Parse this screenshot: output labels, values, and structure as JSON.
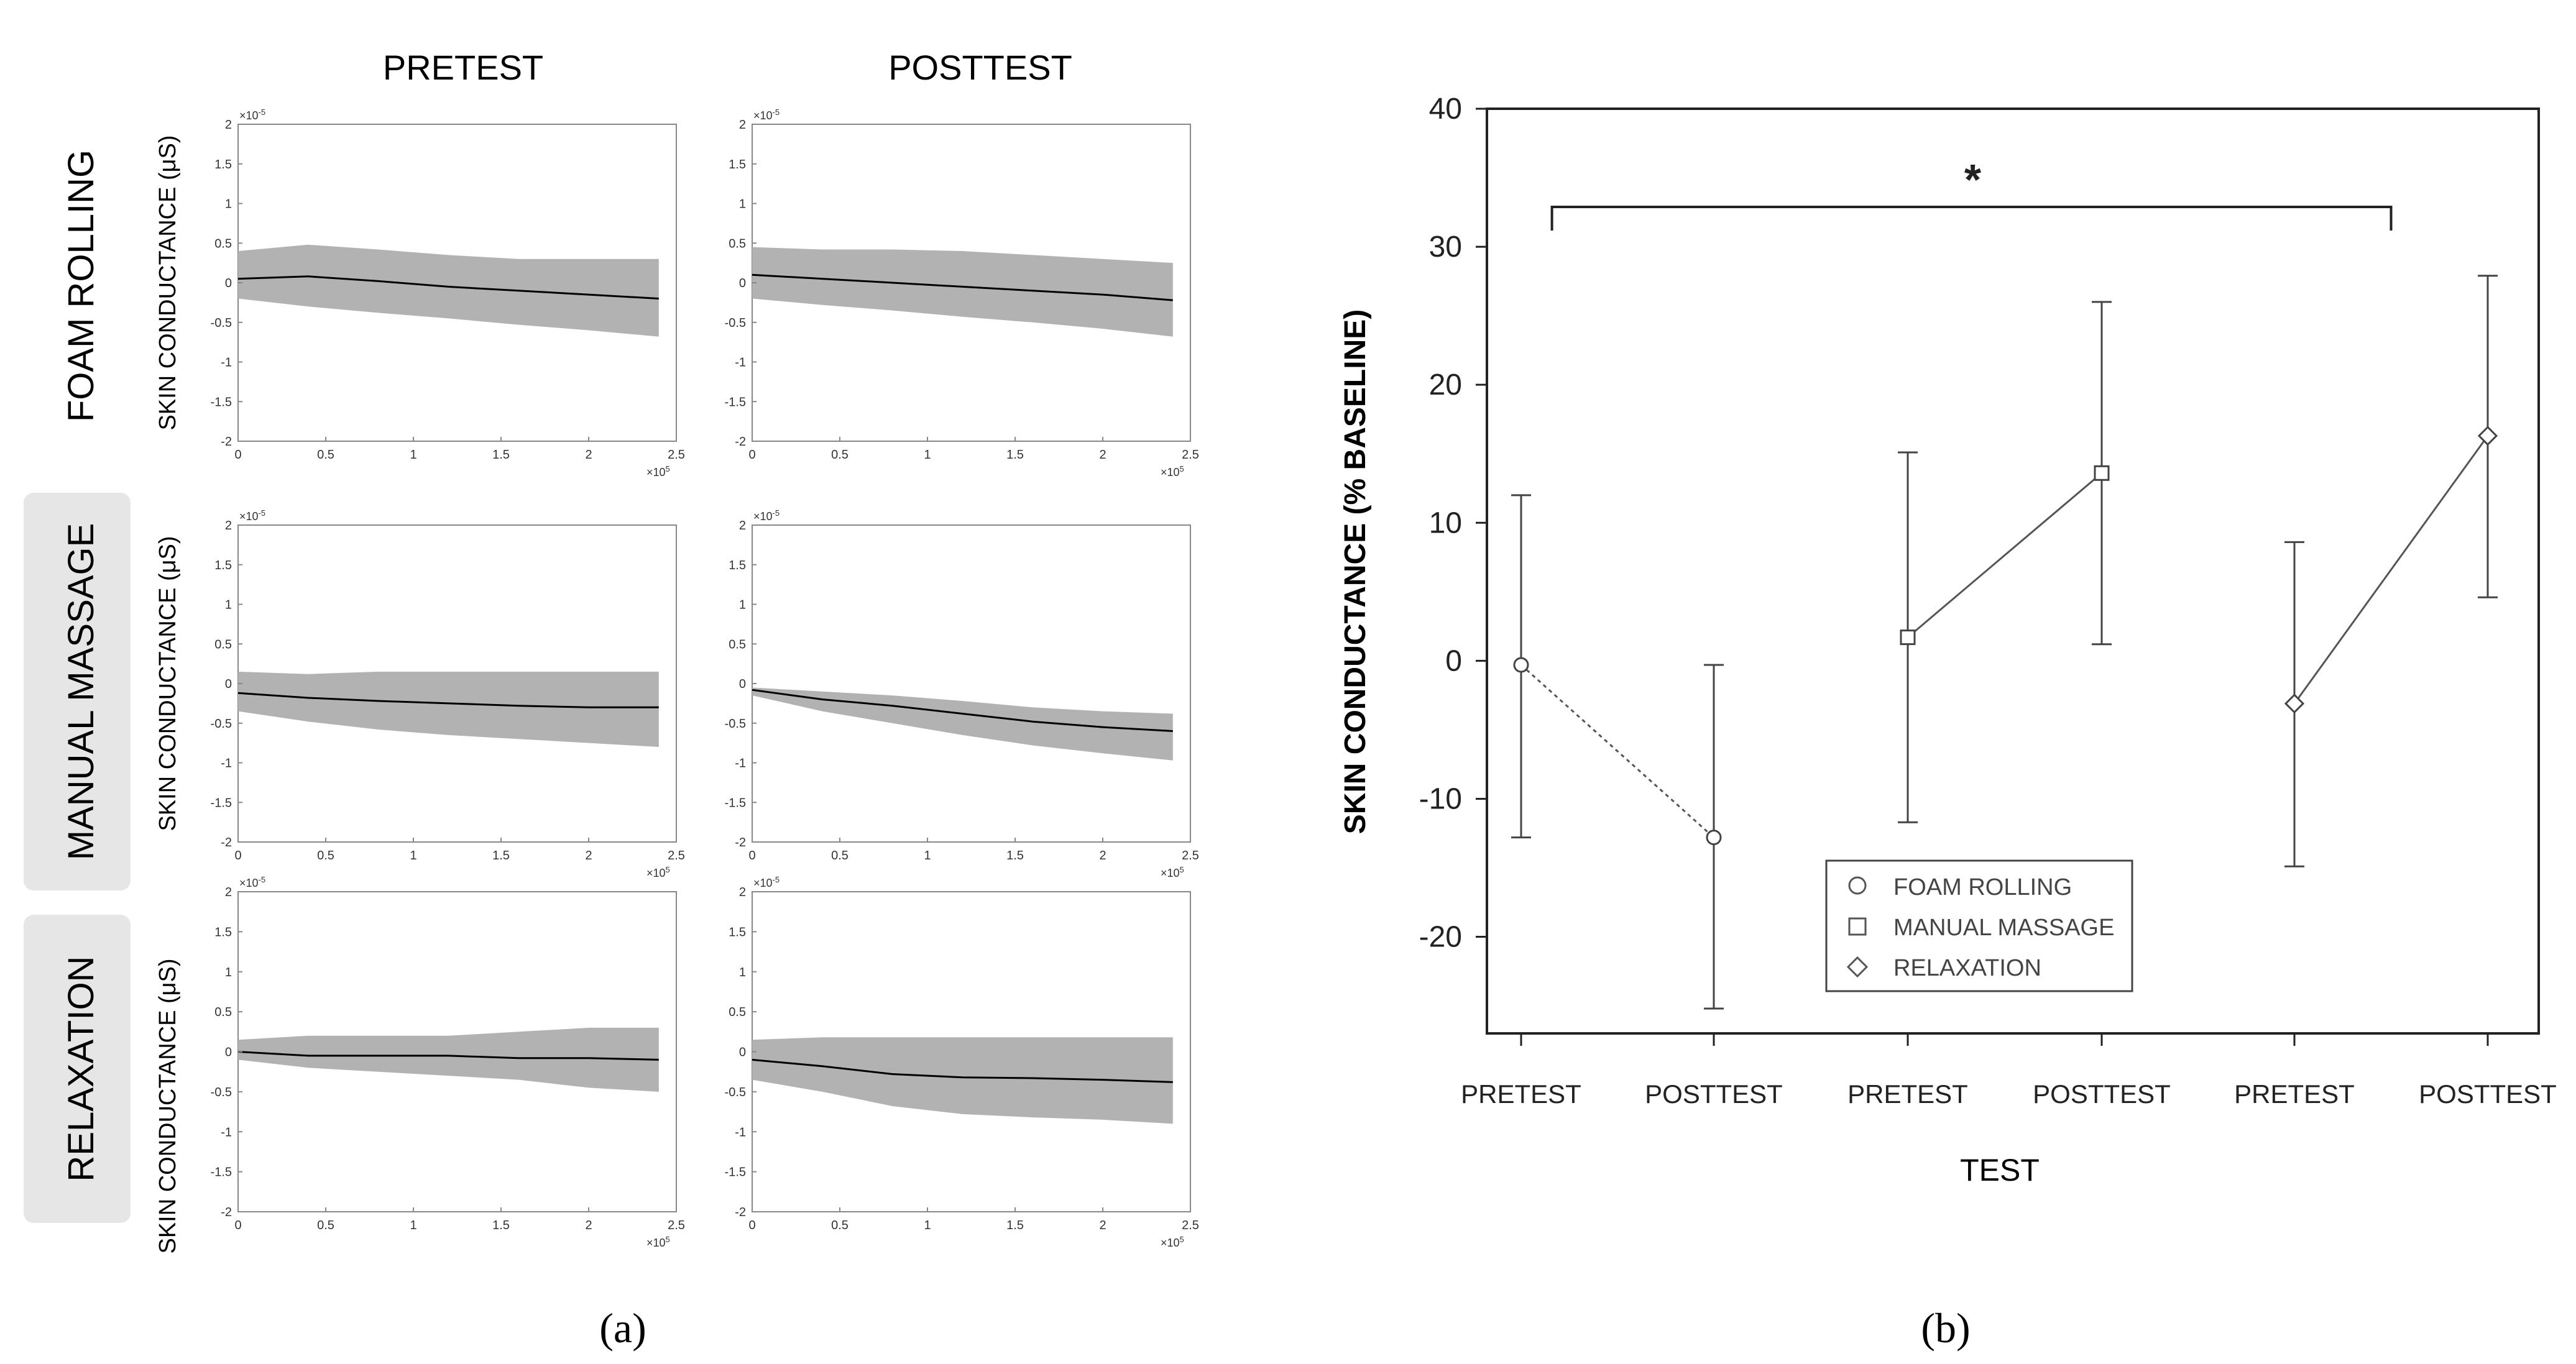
{
  "panel_a": {
    "label": "(a)",
    "column_headers": [
      "PRETEST",
      "POSTTEST"
    ],
    "row_labels": [
      "FOAM ROLLING",
      "MANUAL MASSAGE",
      "RELAXATION"
    ],
    "y_axis_label": "SKIN CONDUCTANCE (μS)",
    "x_ticks": [
      "0",
      "0.5",
      "1",
      "1.5",
      "2",
      "2.5"
    ],
    "y_ticks": [
      "2",
      "1.5",
      "1",
      "0.5",
      "0",
      "-0.5",
      "-1",
      "-1.5",
      "-2"
    ],
    "x_exponent": "×10",
    "x_exponent_power": "5",
    "y_exponent": "×10",
    "y_exponent_power": "-5",
    "colors": {
      "band": "#b2b2b2",
      "line": "#000000",
      "row_label_bg": "#e6e6e6"
    }
  },
  "panel_b": {
    "label": "(b)",
    "significance_marker": "*",
    "colors": {
      "axis": "#222222",
      "marker_fill": "#ffffff"
    }
  },
  "chart_data": [
    {
      "type": "area",
      "panel": "a",
      "grid": {
        "rows": [
          "FOAM ROLLING",
          "MANUAL MASSAGE",
          "RELAXATION"
        ],
        "columns": [
          "PRETEST",
          "POSTTEST"
        ]
      },
      "xlim": [
        0,
        2.5
      ],
      "ylim": [
        -2,
        2
      ],
      "x_unit_multiplier": "1e5",
      "y_unit_multiplier": "1e-5",
      "ylabel": "SKIN CONDUCTANCE (μS)",
      "x_at": [
        0,
        0.4,
        0.8,
        1.2,
        1.6,
        2.0,
        2.4
      ],
      "subplots": [
        {
          "row": "FOAM ROLLING",
          "column": "PRETEST",
          "mean": [
            0.05,
            0.08,
            0.02,
            -0.05,
            -0.1,
            -0.15,
            -0.2
          ],
          "upper": [
            0.4,
            0.48,
            0.42,
            0.35,
            0.3,
            0.3,
            0.3
          ],
          "lower": [
            -0.2,
            -0.3,
            -0.38,
            -0.45,
            -0.53,
            -0.6,
            -0.68
          ]
        },
        {
          "row": "FOAM ROLLING",
          "column": "POSTTEST",
          "mean": [
            0.1,
            0.05,
            0.0,
            -0.05,
            -0.1,
            -0.15,
            -0.22
          ],
          "upper": [
            0.45,
            0.42,
            0.42,
            0.4,
            0.35,
            0.3,
            0.25
          ],
          "lower": [
            -0.2,
            -0.28,
            -0.35,
            -0.43,
            -0.5,
            -0.58,
            -0.68
          ]
        },
        {
          "row": "MANUAL MASSAGE",
          "column": "PRETEST",
          "mean": [
            -0.12,
            -0.18,
            -0.22,
            -0.25,
            -0.28,
            -0.3,
            -0.3
          ],
          "upper": [
            0.15,
            0.12,
            0.15,
            0.15,
            0.15,
            0.15,
            0.15
          ],
          "lower": [
            -0.35,
            -0.48,
            -0.58,
            -0.65,
            -0.7,
            -0.75,
            -0.8
          ]
        },
        {
          "row": "MANUAL MASSAGE",
          "column": "POSTTEST",
          "mean": [
            -0.08,
            -0.2,
            -0.28,
            -0.38,
            -0.48,
            -0.55,
            -0.6
          ],
          "upper": [
            -0.05,
            -0.1,
            -0.15,
            -0.22,
            -0.3,
            -0.35,
            -0.38
          ],
          "lower": [
            -0.15,
            -0.35,
            -0.5,
            -0.65,
            -0.78,
            -0.88,
            -0.97
          ]
        },
        {
          "row": "RELAXATION",
          "column": "PRETEST",
          "mean": [
            0.0,
            -0.05,
            -0.05,
            -0.05,
            -0.08,
            -0.08,
            -0.1
          ],
          "upper": [
            0.15,
            0.2,
            0.2,
            0.2,
            0.25,
            0.3,
            0.3
          ],
          "lower": [
            -0.1,
            -0.2,
            -0.25,
            -0.3,
            -0.35,
            -0.45,
            -0.5
          ]
        },
        {
          "row": "RELAXATION",
          "column": "POSTTEST",
          "mean": [
            -0.1,
            -0.18,
            -0.28,
            -0.32,
            -0.33,
            -0.35,
            -0.38
          ],
          "upper": [
            0.15,
            0.18,
            0.18,
            0.18,
            0.18,
            0.18,
            0.18
          ],
          "lower": [
            -0.35,
            -0.5,
            -0.68,
            -0.78,
            -0.82,
            -0.85,
            -0.9
          ]
        }
      ]
    },
    {
      "type": "scatter",
      "panel": "b",
      "xlabel": "TEST",
      "ylabel": "SKIN CONDUCTANCE (% BASELINE)",
      "categories": [
        "PRETEST",
        "POSTTEST",
        "PRETEST",
        "POSTTEST",
        "PRETEST",
        "POSTTEST"
      ],
      "ylim": [
        -27,
        40
      ],
      "yticks": [
        40,
        30,
        20,
        10,
        0,
        -10,
        -20
      ],
      "legend_position": "bottom-center",
      "series": [
        {
          "name": "FOAM ROLLING",
          "marker": "circle",
          "line": "dotted",
          "x_index": [
            0,
            1
          ],
          "values": [
            -0.3,
            -12.8
          ],
          "err_upper": [
            12.0,
            -0.3
          ],
          "err_lower": [
            -12.8,
            -25.2
          ]
        },
        {
          "name": "MANUAL MASSAGE",
          "marker": "square",
          "line": "solid",
          "x_index": [
            2,
            3
          ],
          "values": [
            1.7,
            13.6
          ],
          "err_upper": [
            15.1,
            26.0
          ],
          "err_lower": [
            -11.7,
            1.2
          ]
        },
        {
          "name": "RELAXATION",
          "marker": "diamond",
          "line": "solid",
          "x_index": [
            4,
            5
          ],
          "values": [
            -3.1,
            16.3
          ],
          "err_upper": [
            8.6,
            27.9
          ],
          "err_lower": [
            -14.9,
            4.6
          ]
        }
      ],
      "annotations": [
        {
          "type": "significance_bracket",
          "text": "*",
          "from_index": 0,
          "to_index": 4.5
        }
      ]
    }
  ]
}
